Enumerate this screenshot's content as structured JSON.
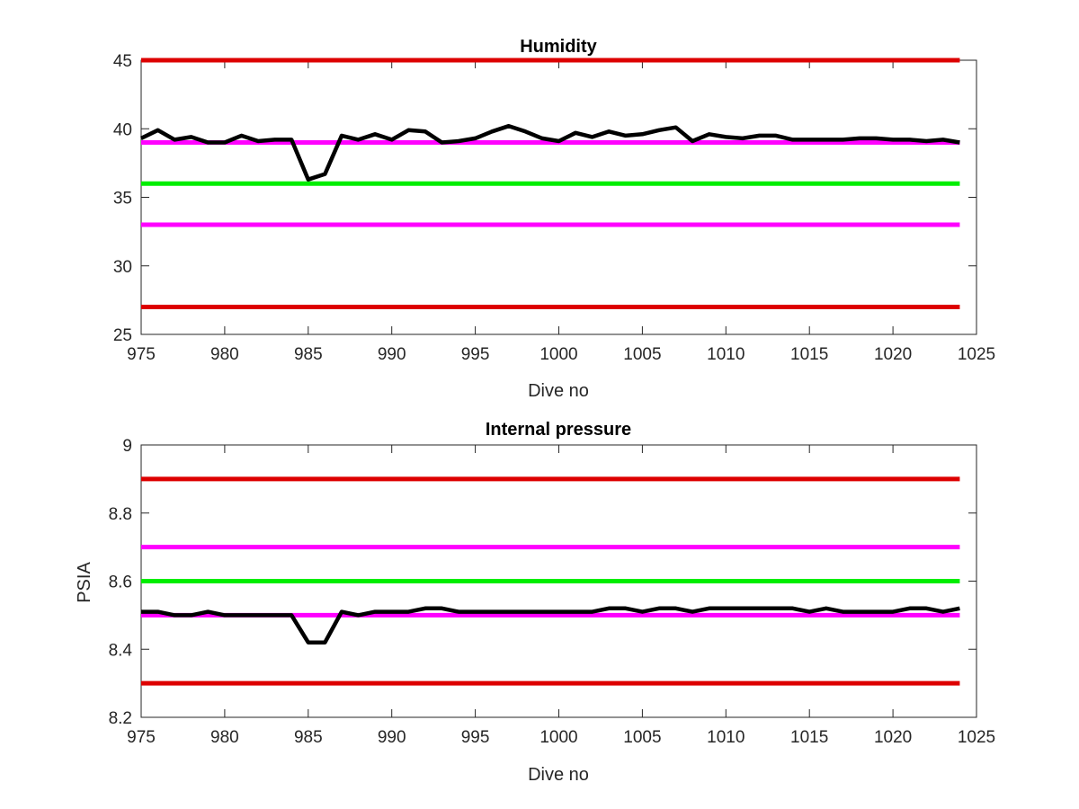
{
  "chart_data": [
    {
      "type": "line",
      "title": "Humidity",
      "xlabel": "Dive no",
      "ylabel": "",
      "xlim": [
        975,
        1025
      ],
      "ylim": [
        25,
        45
      ],
      "xticks": [
        975,
        980,
        985,
        990,
        995,
        1000,
        1005,
        1010,
        1015,
        1020,
        1025
      ],
      "xtick_labels": [
        "975",
        "980",
        "985",
        "990",
        "995",
        "1000",
        "1005",
        "1010",
        "1015",
        "1020",
        "1025"
      ],
      "yticks": [
        25,
        30,
        35,
        40,
        45
      ],
      "ytick_labels": [
        "25",
        "30",
        "35",
        "40",
        "45"
      ],
      "grid": false,
      "threshold_lines": [
        {
          "y": 45,
          "color": "#dd0000",
          "x_range": [
            975,
            1024
          ]
        },
        {
          "y": 39,
          "color": "#ff00ff",
          "x_range": [
            975,
            1024
          ]
        },
        {
          "y": 36,
          "color": "#00ee00",
          "x_range": [
            975,
            1024
          ]
        },
        {
          "y": 33,
          "color": "#ff00ff",
          "x_range": [
            975,
            1024
          ]
        },
        {
          "y": 27,
          "color": "#dd0000",
          "x_range": [
            975,
            1024
          ]
        }
      ],
      "series": [
        {
          "color": "#000000",
          "x": [
            975,
            976,
            977,
            978,
            979,
            980,
            981,
            982,
            983,
            984,
            985,
            986,
            987,
            988,
            989,
            990,
            991,
            992,
            993,
            994,
            995,
            996,
            997,
            998,
            999,
            1000,
            1001,
            1002,
            1003,
            1004,
            1005,
            1006,
            1007,
            1008,
            1009,
            1010,
            1011,
            1012,
            1013,
            1014,
            1015,
            1016,
            1017,
            1018,
            1019,
            1020,
            1021,
            1022,
            1023,
            1024
          ],
          "y": [
            39.3,
            39.9,
            39.2,
            39.4,
            39.0,
            39.0,
            39.5,
            39.1,
            39.2,
            39.2,
            36.3,
            36.7,
            39.5,
            39.2,
            39.6,
            39.2,
            39.9,
            39.8,
            39.0,
            39.1,
            39.3,
            39.8,
            40.2,
            39.8,
            39.3,
            39.1,
            39.7,
            39.4,
            39.8,
            39.5,
            39.6,
            39.9,
            40.1,
            39.1,
            39.6,
            39.4,
            39.3,
            39.5,
            39.5,
            39.2,
            39.2,
            39.2,
            39.2,
            39.3,
            39.3,
            39.2,
            39.2,
            39.1,
            39.2,
            39.0
          ]
        }
      ]
    },
    {
      "type": "line",
      "title": "Internal pressure",
      "xlabel": "Dive no",
      "ylabel": "PSIA",
      "xlim": [
        975,
        1025
      ],
      "ylim": [
        8.2,
        9.0
      ],
      "xticks": [
        975,
        980,
        985,
        990,
        995,
        1000,
        1005,
        1010,
        1015,
        1020,
        1025
      ],
      "xtick_labels": [
        "975",
        "980",
        "985",
        "990",
        "995",
        "1000",
        "1005",
        "1010",
        "1015",
        "1020",
        "1025"
      ],
      "yticks": [
        8.2,
        8.4,
        8.6,
        8.8,
        9.0
      ],
      "ytick_labels": [
        "8.2",
        "8.4",
        "8.6",
        "8.8",
        "9"
      ],
      "grid": false,
      "threshold_lines": [
        {
          "y": 8.9,
          "color": "#dd0000",
          "x_range": [
            975,
            1024
          ]
        },
        {
          "y": 8.7,
          "color": "#ff00ff",
          "x_range": [
            975,
            1024
          ]
        },
        {
          "y": 8.6,
          "color": "#00ee00",
          "x_range": [
            975,
            1024
          ]
        },
        {
          "y": 8.5,
          "color": "#ff00ff",
          "x_range": [
            975,
            1024
          ]
        },
        {
          "y": 8.3,
          "color": "#dd0000",
          "x_range": [
            975,
            1024
          ]
        }
      ],
      "series": [
        {
          "color": "#000000",
          "x": [
            975,
            976,
            977,
            978,
            979,
            980,
            981,
            982,
            983,
            984,
            985,
            986,
            987,
            988,
            989,
            990,
            991,
            992,
            993,
            994,
            995,
            996,
            997,
            998,
            999,
            1000,
            1001,
            1002,
            1003,
            1004,
            1005,
            1006,
            1007,
            1008,
            1009,
            1010,
            1011,
            1012,
            1013,
            1014,
            1015,
            1016,
            1017,
            1018,
            1019,
            1020,
            1021,
            1022,
            1023,
            1024
          ],
          "y": [
            8.51,
            8.51,
            8.5,
            8.5,
            8.51,
            8.5,
            8.5,
            8.5,
            8.5,
            8.5,
            8.42,
            8.42,
            8.51,
            8.5,
            8.51,
            8.51,
            8.51,
            8.52,
            8.52,
            8.51,
            8.51,
            8.51,
            8.51,
            8.51,
            8.51,
            8.51,
            8.51,
            8.51,
            8.52,
            8.52,
            8.51,
            8.52,
            8.52,
            8.51,
            8.52,
            8.52,
            8.52,
            8.52,
            8.52,
            8.52,
            8.51,
            8.52,
            8.51,
            8.51,
            8.51,
            8.51,
            8.52,
            8.52,
            8.51,
            8.52
          ]
        }
      ]
    }
  ]
}
